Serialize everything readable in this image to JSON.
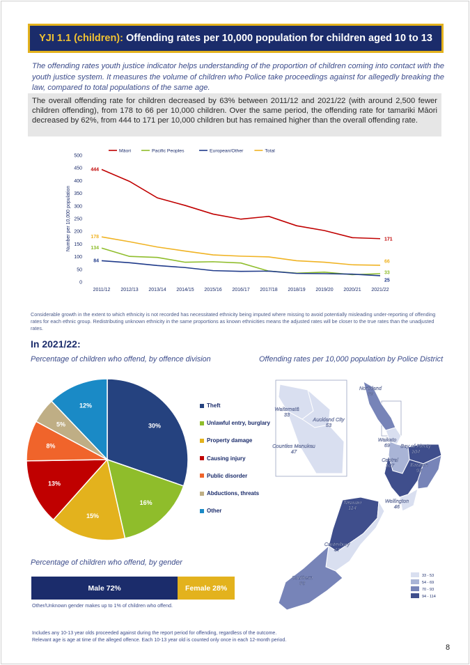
{
  "header": {
    "code": "YJI 1.1 (children):",
    "title": "Offending rates per 10,000 population for children aged 10 to 13"
  },
  "intro": "The offending rates youth justice indicator helps understanding of the proportion of children coming into contact with the youth justice system. It measures the volume of children who Police take proceedings against for allegedly breaking the law, compared to total populations of the same age.",
  "summary": "The overall offending rate for children decreased by 63% between 2011/12 and 2021/22 (with around 2,500 fewer children offending), from 178 to 66 per 10,000 children. Over the same period, the offending rate for tamariki Māori decreased by 62%, from 444 to 171 per 10,000 children but has remained higher than the overall offending rate.",
  "note": "Considerable growth in the extent to which ethnicity is not recorded has necessitated ethnicity being imputed where missing to avoid potentially misleading under-reporting of offending rates for each ethnic group. Redistributing unknown ethnicity in the same proportions as known ethnicities means the adjusted rates will be closer to the true rates than the unadjusted rates.",
  "year_title": "In 2021/22:",
  "pie_title": "Percentage of children who offend, by offence division",
  "map_title": "Offending rates per 10,000 population by Police District",
  "gender_title": "Percentage of children who offend, by gender",
  "gender": {
    "male_label": "Male 72%",
    "female_label": "Female 28%",
    "male": 72,
    "female": 28
  },
  "gender_note": "Other/Unknown gender makes up to 1% of children who offend.",
  "footnote_1": "Includes any 10-13 year olds proceeded against during the report period for offending, regardless of the outcome.",
  "footnote_2": "Relevant age is age at time of the alleged offence. Each 10-13 year old is counted only once in each 12-month period.",
  "page_number": "8",
  "colors": {
    "navy": "#1b2c6b",
    "gold": "#e3b21d",
    "maori": "#c00000",
    "pacific": "#8fbd2b",
    "european": "#1b2c6b",
    "total": "#f0b323"
  },
  "chart_data": [
    {
      "type": "line",
      "x": [
        "2011/12",
        "2012/13",
        "2013/14",
        "2014/15",
        "2015/16",
        "2016/17",
        "2017/18",
        "2018/19",
        "2019/20",
        "2020/21",
        "2021/22"
      ],
      "ylabel": "Number per 10,000 population",
      "ylim": [
        0,
        500
      ],
      "yticks": [
        "0",
        "50",
        "100",
        "150",
        "200",
        "250",
        "300",
        "350",
        "400",
        "450",
        "500"
      ],
      "legend": "top",
      "grid": false,
      "series": [
        {
          "name": "Māori",
          "color": "#c00000",
          "values": [
            444,
            397,
            332,
            302,
            268,
            248,
            259,
            222,
            203,
            175,
            171
          ],
          "start_label": "444",
          "end_label": "171"
        },
        {
          "name": "Pacific Peoples",
          "color": "#8fbd2b",
          "values": [
            134,
            101,
            97,
            78,
            80,
            75,
            43,
            35,
            39,
            29,
            33
          ],
          "start_label": "134",
          "end_label": "33"
        },
        {
          "name": "European/Other",
          "color": "#1f3a8a",
          "values": [
            84,
            76,
            65,
            57,
            45,
            42,
            43,
            34,
            33,
            31,
            25
          ],
          "start_label": "84",
          "end_label": "25"
        },
        {
          "name": "Total",
          "color": "#f0b323",
          "values": [
            178,
            159,
            138,
            122,
            107,
            102,
            99,
            84,
            78,
            68,
            66
          ],
          "start_label": "178",
          "end_label": "66"
        }
      ]
    },
    {
      "type": "pie",
      "slices": [
        {
          "name": "Theft",
          "value": 30,
          "label": "30%",
          "color": "#25427f"
        },
        {
          "name": "Unlawful entry, burglary",
          "value": 16,
          "label": "16%",
          "color": "#8fbd2b"
        },
        {
          "name": "Property damage",
          "value": 15,
          "label": "15%",
          "color": "#e3b21d"
        },
        {
          "name": "Causing injury",
          "value": 13,
          "label": "13%",
          "color": "#c00000"
        },
        {
          "name": "Public disorder",
          "value": 8,
          "label": "8%",
          "color": "#f0642b"
        },
        {
          "name": "Abductions, threats",
          "value": 5,
          "label": "5%",
          "color": "#bfae85"
        },
        {
          "name": "Other",
          "value": 12,
          "label": "12%",
          "color": "#1a8ac6"
        }
      ]
    }
  ],
  "map": {
    "districts": [
      {
        "name": "Northland",
        "value": "89"
      },
      {
        "name": "Waitematā",
        "value": "33"
      },
      {
        "name": "Auckland City",
        "value": "53"
      },
      {
        "name": "Counties Manukau",
        "value": "47"
      },
      {
        "name": "Waikato",
        "value": "69"
      },
      {
        "name": "Bay of Plenty",
        "value": "104"
      },
      {
        "name": "Central",
        "value": "107"
      },
      {
        "name": "Eastern",
        "value": "93"
      },
      {
        "name": "Wellington",
        "value": "46"
      },
      {
        "name": "Tasman",
        "value": "114"
      },
      {
        "name": "Canterbury",
        "value": "47"
      },
      {
        "name": "Southern",
        "value": "83"
      }
    ],
    "legend": [
      "33 - 53",
      "54 - 69",
      "70 - 93",
      "94 - 114"
    ],
    "legend_colors": [
      "#d9dff0",
      "#a9b4d6",
      "#7784b8",
      "#3f4e8c"
    ]
  }
}
